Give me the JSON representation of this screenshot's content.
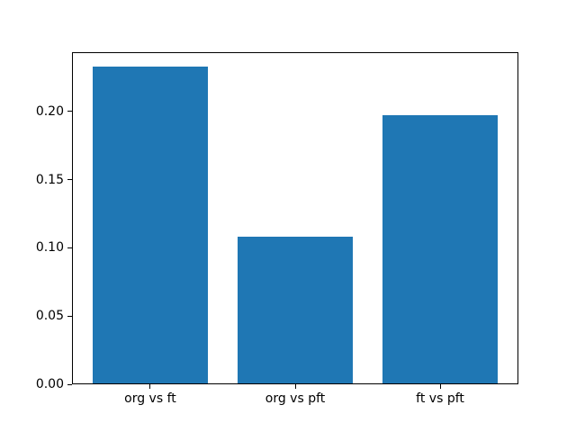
{
  "figure": {
    "background": "#ffffff"
  },
  "chart_data": {
    "type": "bar",
    "title": "",
    "xlabel": "",
    "ylabel": "",
    "categories": [
      "org vs ft",
      "org vs pft",
      "ft vs pft"
    ],
    "values": [
      0.233,
      0.108,
      0.197
    ],
    "bar_color": "#1f77b4",
    "bar_width_fraction": 0.8,
    "xlim": [
      -0.54,
      2.54
    ],
    "ylim": [
      0,
      0.2434
    ],
    "yticks": [
      0,
      0.05,
      0.1,
      0.15,
      0.2
    ],
    "ytick_labels": [
      "0.00",
      "0.05",
      "0.10",
      "0.15",
      "0.20"
    ],
    "grid": false,
    "legend": false,
    "axis_color": "#000000",
    "text_color": "#000000"
  }
}
